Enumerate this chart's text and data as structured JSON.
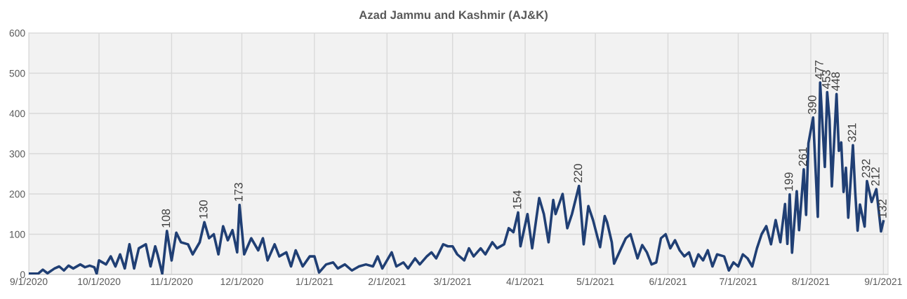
{
  "chart_data": {
    "type": "line",
    "title": "Azad Jammu and Kashmir (AJ&K)",
    "x": [
      "2020-09-01",
      "2020-09-05",
      "2020-09-07",
      "2020-09-09",
      "2020-09-12",
      "2020-09-14",
      "2020-09-16",
      "2020-09-18",
      "2020-09-20",
      "2020-09-23",
      "2020-09-25",
      "2020-09-27",
      "2020-09-29",
      "2020-09-30",
      "2020-10-01",
      "2020-10-04",
      "2020-10-06",
      "2020-10-08",
      "2020-10-10",
      "2020-10-12",
      "2020-10-14",
      "2020-10-16",
      "2020-10-18",
      "2020-10-21",
      "2020-10-23",
      "2020-10-25",
      "2020-10-26",
      "2020-10-28",
      "2020-10-30",
      "2020-11-01",
      "2020-11-03",
      "2020-11-05",
      "2020-11-08",
      "2020-11-10",
      "2020-11-13",
      "2020-11-15",
      "2020-11-17",
      "2020-11-19",
      "2020-11-21",
      "2020-11-23",
      "2020-11-25",
      "2020-11-27",
      "2020-11-29",
      "2020-11-30",
      "2020-12-02",
      "2020-12-05",
      "2020-12-08",
      "2020-12-10",
      "2020-12-12",
      "2020-12-15",
      "2020-12-17",
      "2020-12-20",
      "2020-12-22",
      "2020-12-24",
      "2020-12-27",
      "2020-12-30",
      "2021-01-01",
      "2021-01-03",
      "2021-01-06",
      "2021-01-09",
      "2021-01-11",
      "2021-01-14",
      "2021-01-17",
      "2021-01-20",
      "2021-01-23",
      "2021-01-26",
      "2021-01-28",
      "2021-01-30",
      "2021-02-03",
      "2021-02-05",
      "2021-02-08",
      "2021-02-10",
      "2021-02-13",
      "2021-02-15",
      "2021-02-18",
      "2021-02-20",
      "2021-02-22",
      "2021-02-25",
      "2021-02-27",
      "2021-03-01",
      "2021-03-03",
      "2021-03-06",
      "2021-03-08",
      "2021-03-10",
      "2021-03-13",
      "2021-03-15",
      "2021-03-18",
      "2021-03-20",
      "2021-03-23",
      "2021-03-25",
      "2021-03-27",
      "2021-03-29",
      "2021-03-30",
      "2021-04-02",
      "2021-04-04",
      "2021-04-07",
      "2021-04-09",
      "2021-04-11",
      "2021-04-13",
      "2021-04-14",
      "2021-04-17",
      "2021-04-19",
      "2021-04-21",
      "2021-04-24",
      "2021-04-26",
      "2021-04-28",
      "2021-04-30",
      "2021-05-03",
      "2021-05-05",
      "2021-05-06",
      "2021-05-08",
      "2021-05-09",
      "2021-05-12",
      "2021-05-14",
      "2021-05-16",
      "2021-05-19",
      "2021-05-21",
      "2021-05-23",
      "2021-05-25",
      "2021-05-27",
      "2021-05-29",
      "2021-05-31",
      "2021-06-02",
      "2021-06-04",
      "2021-06-06",
      "2021-06-08",
      "2021-06-10",
      "2021-06-12",
      "2021-06-14",
      "2021-06-16",
      "2021-06-18",
      "2021-06-20",
      "2021-06-22",
      "2021-06-25",
      "2021-06-27",
      "2021-06-29",
      "2021-07-01",
      "2021-07-03",
      "2021-07-05",
      "2021-07-07",
      "2021-07-09",
      "2021-07-11",
      "2021-07-13",
      "2021-07-15",
      "2021-07-17",
      "2021-07-19",
      "2021-07-21",
      "2021-07-22",
      "2021-07-23",
      "2021-07-24",
      "2021-07-26",
      "2021-07-27",
      "2021-07-29",
      "2021-07-30",
      "2021-07-31",
      "2021-08-02",
      "2021-08-04",
      "2021-08-05",
      "2021-08-07",
      "2021-08-08",
      "2021-08-09",
      "2021-08-10",
      "2021-08-12",
      "2021-08-13",
      "2021-08-14",
      "2021-08-15",
      "2021-08-16",
      "2021-08-17",
      "2021-08-19",
      "2021-08-20",
      "2021-08-21",
      "2021-08-22",
      "2021-08-24",
      "2021-08-25",
      "2021-08-27",
      "2021-08-29",
      "2021-08-31",
      "2021-09-01"
    ],
    "series": [
      {
        "color": "#203f74",
        "values": [
          2,
          2,
          12,
          3,
          15,
          20,
          10,
          22,
          15,
          25,
          18,
          22,
          18,
          2,
          35,
          25,
          45,
          20,
          50,
          15,
          75,
          15,
          65,
          75,
          20,
          70,
          50,
          2,
          108,
          35,
          104,
          80,
          75,
          50,
          80,
          130,
          90,
          100,
          50,
          120,
          85,
          110,
          55,
          173,
          50,
          90,
          60,
          90,
          35,
          75,
          45,
          55,
          20,
          60,
          20,
          45,
          45,
          5,
          25,
          30,
          15,
          25,
          10,
          20,
          25,
          20,
          45,
          15,
          55,
          20,
          30,
          15,
          40,
          25,
          45,
          55,
          40,
          75,
          70,
          70,
          50,
          35,
          65,
          45,
          65,
          50,
          80,
          65,
          75,
          115,
          105,
          154,
          70,
          150,
          65,
          190,
          150,
          80,
          185,
          150,
          200,
          115,
          150,
          220,
          75,
          170,
          135,
          68,
          145,
          130,
          80,
          27,
          65,
          90,
          100,
          40,
          73,
          55,
          25,
          30,
          90,
          100,
          65,
          85,
          60,
          45,
          55,
          20,
          50,
          35,
          60,
          20,
          50,
          45,
          10,
          30,
          20,
          50,
          40,
          20,
          65,
          100,
          120,
          75,
          135,
          80,
          175,
          76,
          199,
          54,
          207,
          110,
          261,
          148,
          326,
          390,
          143,
          477,
          267,
          453,
          385,
          219,
          448,
          307,
          328,
          205,
          265,
          141,
          321,
          203,
          109,
          174,
          119,
          232,
          180,
          212,
          107,
          132
        ]
      }
    ],
    "annotations": [
      {
        "text": "108",
        "x": "2020-10-30",
        "y": 108
      },
      {
        "text": "130",
        "x": "2020-11-15",
        "y": 130
      },
      {
        "text": "173",
        "x": "2020-11-30",
        "y": 173
      },
      {
        "text": "154",
        "x": "2021-03-29",
        "y": 154
      },
      {
        "text": "220",
        "x": "2021-04-24",
        "y": 220
      },
      {
        "text": "199",
        "x": "2021-07-23",
        "y": 199
      },
      {
        "text": "261",
        "x": "2021-07-29",
        "y": 261
      },
      {
        "text": "390",
        "x": "2021-08-02",
        "y": 390
      },
      {
        "text": "477",
        "x": "2021-08-05",
        "y": 477
      },
      {
        "text": "453",
        "x": "2021-08-08",
        "y": 453
      },
      {
        "text": "448",
        "x": "2021-08-12",
        "y": 448
      },
      {
        "text": "321",
        "x": "2021-08-19",
        "y": 321
      },
      {
        "text": "232",
        "x": "2021-08-25",
        "y": 232
      },
      {
        "text": "212",
        "x": "2021-08-29",
        "y": 212
      },
      {
        "text": "132",
        "x": "2021-09-01",
        "y": 132
      }
    ],
    "xlim": [
      "2020-09-01",
      "2021-09-03"
    ],
    "xticks": [
      {
        "value": "2020-09-01",
        "label": "9/1/2020"
      },
      {
        "value": "2020-10-01",
        "label": "10/1/2020"
      },
      {
        "value": "2020-11-01",
        "label": "11/1/2020"
      },
      {
        "value": "2020-12-01",
        "label": "12/1/2020"
      },
      {
        "value": "2021-01-01",
        "label": "1/1/2021"
      },
      {
        "value": "2021-02-01",
        "label": "2/1/2021"
      },
      {
        "value": "2021-03-01",
        "label": "3/1/2021"
      },
      {
        "value": "2021-04-01",
        "label": "4/1/2021"
      },
      {
        "value": "2021-05-01",
        "label": "5/1/2021"
      },
      {
        "value": "2021-06-01",
        "label": "6/1/2021"
      },
      {
        "value": "2021-07-01",
        "label": "7/1/2021"
      },
      {
        "value": "2021-08-01",
        "label": "8/1/2021"
      },
      {
        "value": "2021-09-01",
        "label": "9/1/2021"
      }
    ],
    "ylim": [
      0,
      600
    ],
    "yticks": [
      0,
      100,
      200,
      300,
      400,
      500,
      600
    ],
    "grid": true,
    "marker": "none",
    "line_style": "solid"
  }
}
